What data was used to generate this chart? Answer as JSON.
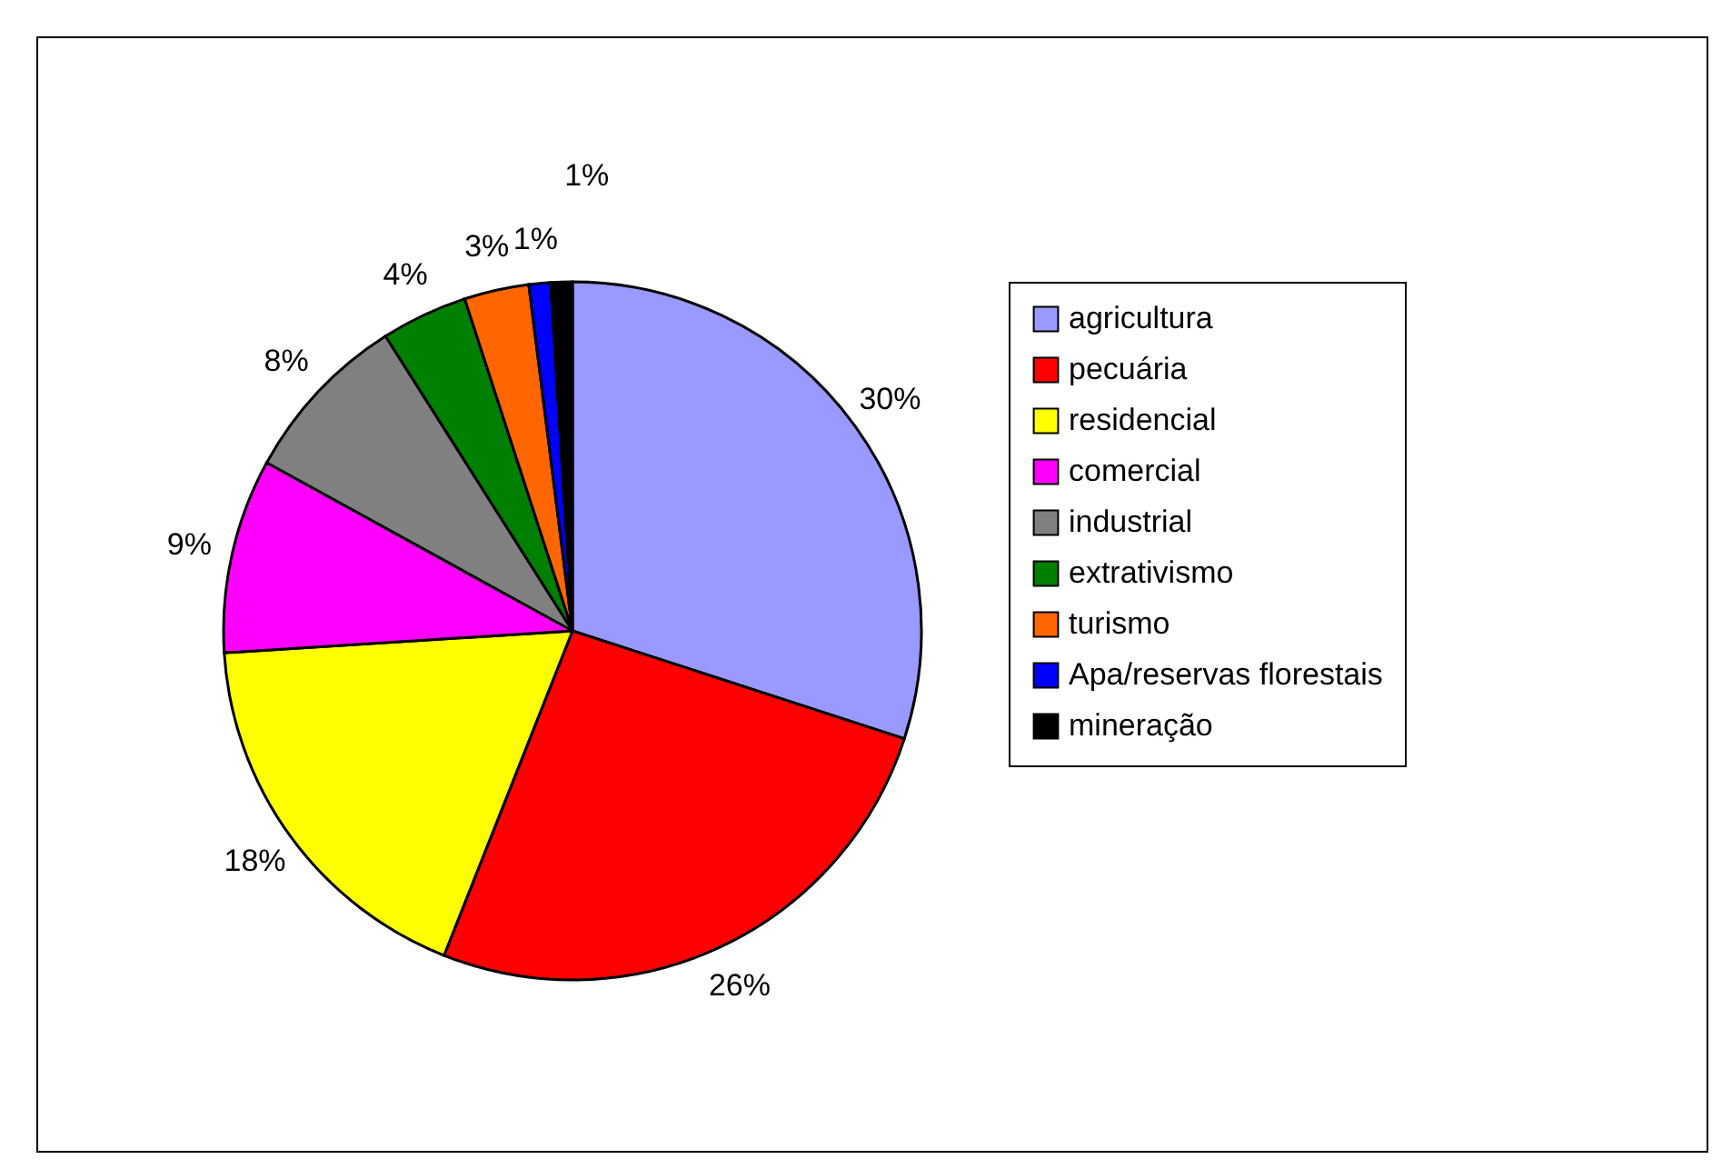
{
  "chart_data": {
    "type": "pie",
    "categories": [
      "agricultura",
      "pecuária",
      "residencial",
      "comercial",
      "industrial",
      "extrativismo",
      "turismo",
      "Apa/reservas florestais",
      "mineração"
    ],
    "values": [
      30,
      26,
      18,
      9,
      8,
      4,
      3,
      1,
      1
    ],
    "colors": [
      "#9999ff",
      "#ff0000",
      "#ffff00",
      "#ff00ff",
      "#808080",
      "#008000",
      "#ff6600",
      "#0000ff",
      "#000000"
    ],
    "value_labels": [
      "30%",
      "26%",
      "18%",
      "9%",
      "8%",
      "4%",
      "3%",
      "1%",
      "1%"
    ],
    "legend": "right"
  }
}
